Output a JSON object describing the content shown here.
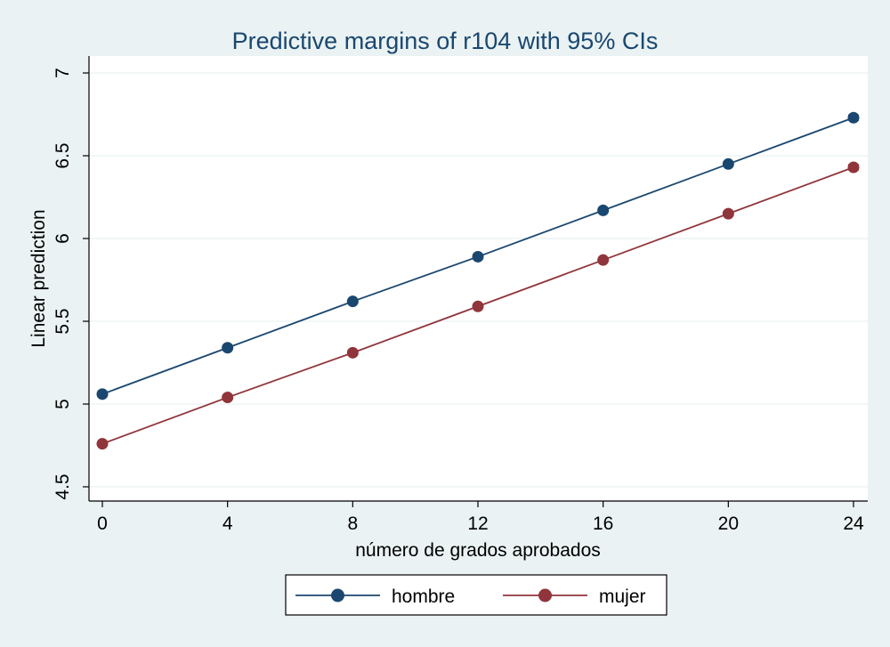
{
  "chart_data": {
    "type": "line",
    "title": "Predictive margins of r104 with 95% CIs",
    "xlabel": "número de grados aprobados",
    "ylabel": "Linear prediction",
    "x": [
      0,
      4,
      8,
      12,
      16,
      20,
      24
    ],
    "xlim": [
      0,
      24
    ],
    "ylim": [
      4.5,
      7
    ],
    "x_ticks": [
      "0",
      "4",
      "8",
      "12",
      "16",
      "20",
      "24"
    ],
    "y_ticks": [
      "4.5",
      "5",
      "5.5",
      "6",
      "6.5",
      "7"
    ],
    "grid": true,
    "legend_position": "bottom",
    "series": [
      {
        "name": "hombre",
        "color": "#1a476f",
        "values": [
          5.06,
          5.34,
          5.62,
          5.89,
          6.17,
          6.45,
          6.73
        ],
        "ci_low": [
          5.05,
          5.33,
          5.61,
          5.885,
          6.165,
          6.44,
          6.715
        ],
        "ci_high": [
          5.07,
          5.35,
          5.63,
          5.895,
          6.175,
          6.46,
          6.745
        ]
      },
      {
        "name": "mujer",
        "color": "#90353b",
        "values": [
          4.76,
          5.04,
          5.31,
          5.59,
          5.87,
          6.15,
          6.43
        ],
        "ci_low": [
          4.75,
          5.03,
          5.3,
          5.585,
          5.865,
          6.14,
          6.415
        ],
        "ci_high": [
          4.77,
          5.05,
          5.32,
          5.595,
          5.875,
          6.16,
          6.445
        ]
      }
    ]
  }
}
